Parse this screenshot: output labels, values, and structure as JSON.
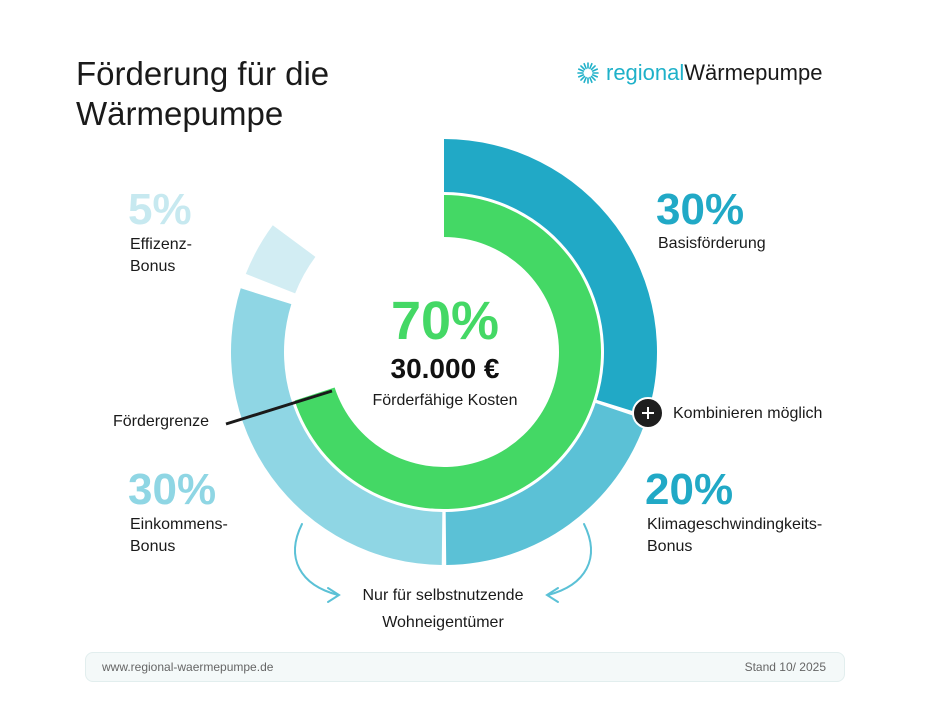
{
  "title": {
    "line1": "Förderung für die",
    "line2": "Wärmepumpe"
  },
  "logo": {
    "part1": "regional",
    "part2": "Wärmepumpe",
    "icon": "sun-rays-icon"
  },
  "center": {
    "percent": "70%",
    "amount": "30.000 €",
    "caption": "Förderfähige Kosten"
  },
  "segments": {
    "basis": {
      "percent": "30%",
      "label": "Basisförderung",
      "value": 30,
      "color": "#21a9c6"
    },
    "klima": {
      "percent": "20%",
      "label1": "Klimageschwindingkeits-",
      "label2": "Bonus",
      "value": 20,
      "color": "#5bc1d6"
    },
    "einkommen": {
      "percent": "30%",
      "label1": "Einkommens-",
      "label2": "Bonus",
      "value": 30,
      "color": "#8fd6e4"
    },
    "effizienz": {
      "percent": "5%",
      "label1": "Effizenz-",
      "label2": "Bonus",
      "value": 5,
      "color": "#d2edf3"
    }
  },
  "inner_ring": {
    "value": 70,
    "color": "#44d865"
  },
  "annotations": {
    "foerdergrenze": "Fördergrenze",
    "kombinieren": "Kombinieren möglich",
    "note_line1": "Nur für selbstnutzende",
    "note_line2": "Wohneigentümer"
  },
  "footer": {
    "url": "www.regional-waermepumpe.de",
    "stand": "Stand 10/ 2025"
  }
}
